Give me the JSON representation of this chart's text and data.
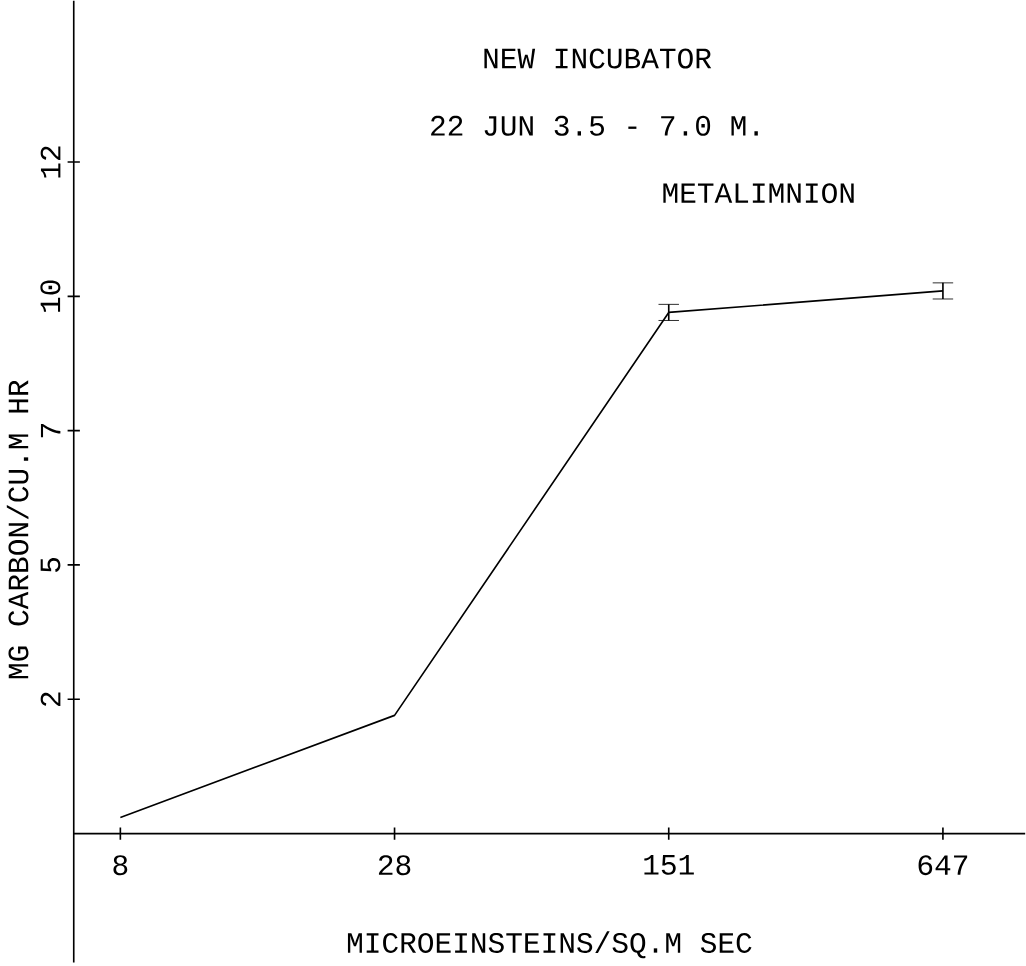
{
  "chart_data": {
    "type": "line",
    "title": "NEW INCUBATOR",
    "subtitle": "22 JUN      3.5 - 7.0 M.",
    "annotations": [
      "METALIMNION"
    ],
    "xlabel": "MICROEINSTEINS/SQ.M SEC",
    "ylabel": "MG CARBON/CU.M HR",
    "categories": [
      "8",
      "28",
      "151",
      "647"
    ],
    "values": [
      0.3,
      2.2,
      9.7,
      10.1
    ],
    "errors": [
      null,
      null,
      0.15,
      0.15
    ],
    "color": "#000000",
    "ylim": [
      -2.4,
      15.5
    ],
    "yticks": [
      {
        "value": 2.5,
        "label": "2"
      },
      {
        "value": 5,
        "label": "5"
      },
      {
        "value": 7.5,
        "label": "7"
      },
      {
        "value": 10,
        "label": "10"
      },
      {
        "value": 12.5,
        "label": "12"
      }
    ],
    "grid": false,
    "marker": "none",
    "line_style": "solid"
  }
}
